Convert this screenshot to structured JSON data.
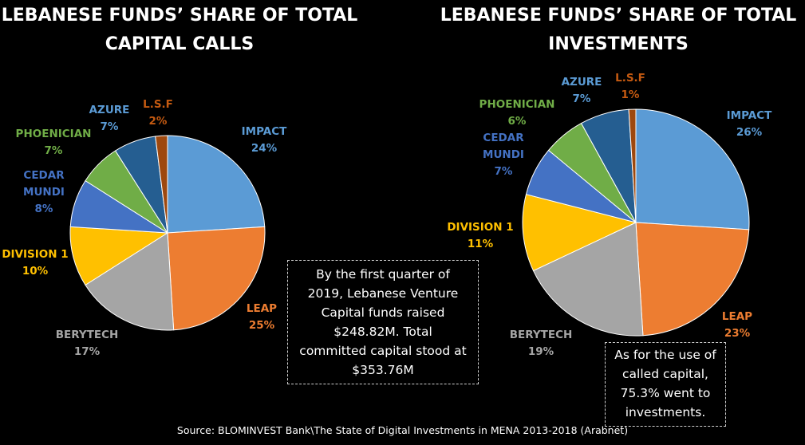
{
  "chart_data": [
    {
      "type": "pie",
      "title": "LEBANESE FUNDS’ SHARE OF TOTAL CAPITAL CALLS",
      "slices": [
        {
          "name": "IMPACT",
          "value": 24,
          "label": "24%",
          "color": "#5B9BD5"
        },
        {
          "name": "LEAP",
          "value": 25,
          "label": "25%",
          "color": "#ED7D31"
        },
        {
          "name": "BERYTECH",
          "value": 17,
          "label": "17%",
          "color": "#A5A5A5"
        },
        {
          "name": "DIVISION 1",
          "value": 10,
          "label": "10%",
          "color": "#FFC000"
        },
        {
          "name": "CEDAR MUNDI",
          "value": 8,
          "label": "8%",
          "color": "#4472C4"
        },
        {
          "name": "PHOENICIAN",
          "value": 7,
          "label": "7%",
          "color": "#70AD47"
        },
        {
          "name": "AZURE",
          "value": 7,
          "label": "7%",
          "color": "#255E91"
        },
        {
          "name": "L.S.F",
          "value": 2,
          "label": "2%",
          "color": "#9E480E"
        }
      ]
    },
    {
      "type": "pie",
      "title": "LEBANESE FUNDS’ SHARE OF TOTAL INVESTMENTS",
      "slices": [
        {
          "name": "IMPACT",
          "value": 26,
          "label": "26%",
          "color": "#5B9BD5"
        },
        {
          "name": "LEAP",
          "value": 23,
          "label": "23%",
          "color": "#ED7D31"
        },
        {
          "name": "BERYTECH",
          "value": 19,
          "label": "19%",
          "color": "#A5A5A5"
        },
        {
          "name": "DIVISION 1",
          "value": 11,
          "label": "11%",
          "color": "#FFC000"
        },
        {
          "name": "CEDAR MUNDI",
          "value": 7,
          "label": "7%",
          "color": "#4472C4"
        },
        {
          "name": "PHOENICIAN",
          "value": 6,
          "label": "6%",
          "color": "#70AD47"
        },
        {
          "name": "AZURE",
          "value": 7,
          "label": "7%",
          "color": "#255E91"
        },
        {
          "name": "L.S.F",
          "value": 1,
          "label": "1%",
          "color": "#9E480E"
        }
      ]
    }
  ],
  "titles": {
    "left_line1": "LEBANESE FUNDS’ SHARE OF TOTAL",
    "left_line2": "CAPITAL CALLS",
    "right_line1": "LEBANESE FUNDS’ SHARE OF TOTAL",
    "right_line2": "INVESTMENTS"
  },
  "left_labels": {
    "impact": {
      "name": "IMPACT",
      "pct": "24%"
    },
    "leap": {
      "name": "LEAP",
      "pct": "25%"
    },
    "berytech": {
      "name": "BERYTECH",
      "pct": "17%"
    },
    "division1": {
      "name": "DIVISION 1",
      "pct": "10%"
    },
    "cedar": {
      "name1": "CEDAR",
      "name2": "MUNDI",
      "pct": "8%"
    },
    "phoenician": {
      "name": "PHOENICIAN",
      "pct": "7%"
    },
    "azure": {
      "name": "AZURE",
      "pct": "7%"
    },
    "lsf": {
      "name": "L.S.F",
      "pct": "2%"
    }
  },
  "right_labels": {
    "impact": {
      "name": "IMPACT",
      "pct": "26%"
    },
    "leap": {
      "name": "LEAP",
      "pct": "23%"
    },
    "berytech": {
      "name": "BERYTECH",
      "pct": "19%"
    },
    "division1": {
      "name": "DIVISION 1",
      "pct": "11%"
    },
    "cedar": {
      "name1": "CEDAR",
      "name2": "MUNDI",
      "pct": "7%"
    },
    "phoenician": {
      "name": "PHOENICIAN",
      "pct": "6%"
    },
    "azure": {
      "name": "AZURE",
      "pct": "7%"
    },
    "lsf": {
      "name": "L.S.F",
      "pct": "1%"
    }
  },
  "note_left": {
    "line1": "By the first quarter of",
    "line2": "2019, Lebanese Venture",
    "line3": "Capital funds raised",
    "line4": "$248.82M. Total",
    "line5": "committed capital stood at",
    "line6": "$353.76M"
  },
  "note_right": {
    "line1": "As for the use of",
    "line2": "called capital,",
    "line3": "75.3% went to",
    "line4": "investments."
  },
  "source": "Source: BLOMINVEST Bank\\The State of Digital Investments in MENA 2013-2018 (Arabnet)"
}
